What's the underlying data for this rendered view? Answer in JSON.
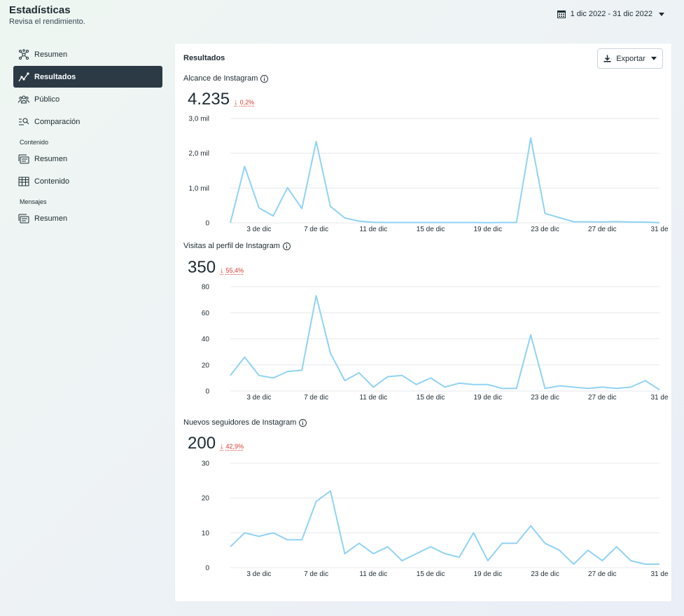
{
  "header": {
    "title": "Estadísticas",
    "subtitle": "Revisa el rendimiento."
  },
  "date_range": {
    "label": "1 dic 2022 - 31 dic 2022"
  },
  "sidebar": {
    "items": [
      {
        "label": "Resumen",
        "icon": "network-icon"
      },
      {
        "label": "Resultados",
        "icon": "trend-icon",
        "active": true
      },
      {
        "label": "Público",
        "icon": "people-icon"
      },
      {
        "label": "Comparación",
        "icon": "search-list-icon"
      }
    ],
    "content_section": {
      "title": "Contenido",
      "items": [
        {
          "label": "Resumen",
          "icon": "stack-icon"
        },
        {
          "label": "Contenido",
          "icon": "table-icon"
        }
      ]
    },
    "messages_section": {
      "title": "Mensajes",
      "items": [
        {
          "label": "Resumen",
          "icon": "stack-icon"
        }
      ]
    }
  },
  "card": {
    "title": "Resultados",
    "export_label": "Exportar",
    "metrics": [
      {
        "title": "Alcance de Instagram",
        "value": "4.235",
        "change": "0,2%"
      },
      {
        "title": "Visitas al perfil de Instagram",
        "value": "350",
        "change": "55,4%"
      },
      {
        "title": "Nuevos seguidores de Instagram",
        "value": "200",
        "change": "42,9%"
      }
    ]
  },
  "colors": {
    "line": "#8fd3f4",
    "negative": "#d83a2b",
    "active_nav": "#2b3a45"
  },
  "chart_data": [
    {
      "type": "line",
      "title": "Alcance de Instagram",
      "x": [
        "1 dic",
        "2 dic",
        "3 dic",
        "4 dic",
        "5 dic",
        "6 dic",
        "7 dic",
        "8 dic",
        "9 dic",
        "10 dic",
        "11 dic",
        "12 dic",
        "13 dic",
        "14 dic",
        "15 dic",
        "16 dic",
        "17 dic",
        "18 dic",
        "19 dic",
        "20 dic",
        "21 dic",
        "22 dic",
        "23 dic",
        "24 dic",
        "25 dic",
        "26 dic",
        "27 dic",
        "28 dic",
        "29 dic",
        "30 dic",
        "31 dic"
      ],
      "x_tick_labels": [
        "3 de dic",
        "7 de dic",
        "11 de dic",
        "15 de dic",
        "19 de dic",
        "23 de dic",
        "27 de dic",
        "31 de"
      ],
      "y_tick_labels": [
        "0",
        "1,0 mil",
        "2,0 mil",
        "3,0 mil"
      ],
      "ylim": [
        0,
        3000
      ],
      "values": [
        0,
        1620,
        430,
        200,
        1010,
        410,
        2340,
        470,
        140,
        50,
        15,
        10,
        10,
        10,
        10,
        10,
        10,
        10,
        5,
        10,
        10,
        2440,
        270,
        150,
        30,
        30,
        25,
        35,
        25,
        20,
        5
      ]
    },
    {
      "type": "line",
      "title": "Visitas al perfil de Instagram",
      "x": [
        "1 dic",
        "2 dic",
        "3 dic",
        "4 dic",
        "5 dic",
        "6 dic",
        "7 dic",
        "8 dic",
        "9 dic",
        "10 dic",
        "11 dic",
        "12 dic",
        "13 dic",
        "14 dic",
        "15 dic",
        "16 dic",
        "17 dic",
        "18 dic",
        "19 dic",
        "20 dic",
        "21 dic",
        "22 dic",
        "23 dic",
        "24 dic",
        "25 dic",
        "26 dic",
        "27 dic",
        "28 dic",
        "29 dic",
        "30 dic",
        "31 dic"
      ],
      "x_tick_labels": [
        "3 de dic",
        "7 de dic",
        "11 de dic",
        "15 de dic",
        "19 de dic",
        "23 de dic",
        "27 de dic",
        "31 de"
      ],
      "y_tick_labels": [
        "0",
        "20",
        "40",
        "60",
        "80"
      ],
      "ylim": [
        0,
        80
      ],
      "values": [
        12,
        26,
        12,
        10,
        15,
        16,
        73,
        29,
        8,
        14,
        3,
        11,
        12,
        5,
        10,
        3,
        6,
        5,
        5,
        2,
        2,
        43,
        2,
        4,
        3,
        2,
        3,
        2,
        3,
        8,
        1
      ]
    },
    {
      "type": "line",
      "title": "Nuevos seguidores de Instagram",
      "x": [
        "1 dic",
        "2 dic",
        "3 dic",
        "4 dic",
        "5 dic",
        "6 dic",
        "7 dic",
        "8 dic",
        "9 dic",
        "10 dic",
        "11 dic",
        "12 dic",
        "13 dic",
        "14 dic",
        "15 dic",
        "16 dic",
        "17 dic",
        "18 dic",
        "19 dic",
        "20 dic",
        "21 dic",
        "22 dic",
        "23 dic",
        "24 dic",
        "25 dic",
        "26 dic",
        "27 dic",
        "28 dic",
        "29 dic",
        "30 dic",
        "31 dic"
      ],
      "x_tick_labels": [
        "3 de dic",
        "7 de dic",
        "11 de dic",
        "15 de dic",
        "19 de dic",
        "23 de dic",
        "27 de dic",
        "31 de"
      ],
      "y_tick_labels": [
        "0",
        "10",
        "20",
        "30"
      ],
      "ylim": [
        0,
        30
      ],
      "values": [
        6,
        10,
        9,
        10,
        8,
        8,
        19,
        22,
        4,
        7,
        4,
        6,
        2,
        4,
        6,
        4,
        3,
        10,
        2,
        7,
        7,
        12,
        7,
        5,
        1,
        5,
        2,
        6,
        2,
        1,
        1
      ]
    }
  ]
}
